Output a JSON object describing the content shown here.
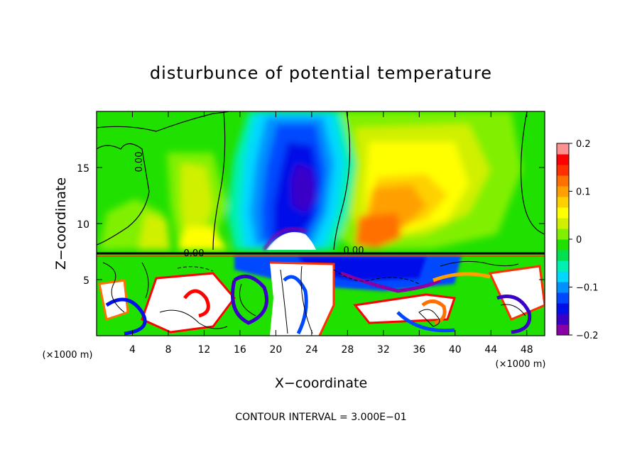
{
  "chart_data": {
    "type": "heatmap",
    "title": "disturbunce of potential temperature",
    "xlabel": "X−coordinate",
    "ylabel": "Z−coordinate",
    "x_unit": "(×1000 m)",
    "y_unit": "(×1000 m)",
    "xlim": [
      0,
      50
    ],
    "ylim": [
      0,
      20
    ],
    "x_ticks": [
      4,
      8,
      12,
      16,
      20,
      24,
      28,
      32,
      36,
      40,
      44,
      48
    ],
    "y_ticks": [
      5,
      10,
      15
    ],
    "colorbar": {
      "range": [
        -0.2,
        0.2
      ],
      "tick_values": [
        0.2,
        0.1,
        0,
        -0.1,
        -0.2
      ],
      "tick_labels": [
        "0.2",
        "0.1",
        "0",
        "−0.1",
        "−0.2"
      ],
      "colors": [
        "#8a00a8",
        "#3a00c8",
        "#0010e8",
        "#0048ff",
        "#0090ff",
        "#00d8ff",
        "#00f0b0",
        "#00e050",
        "#20e000",
        "#80f000",
        "#d0f000",
        "#ffff00",
        "#ffd000",
        "#ffa000",
        "#ff7000",
        "#ff3000",
        "#ff0000",
        "#ff9090"
      ]
    },
    "contour_labels": [
      "0.00",
      "0.00",
      "0.00"
    ],
    "grid": false
  },
  "footer": "CONTOUR INTERVAL = 3.000E−01"
}
